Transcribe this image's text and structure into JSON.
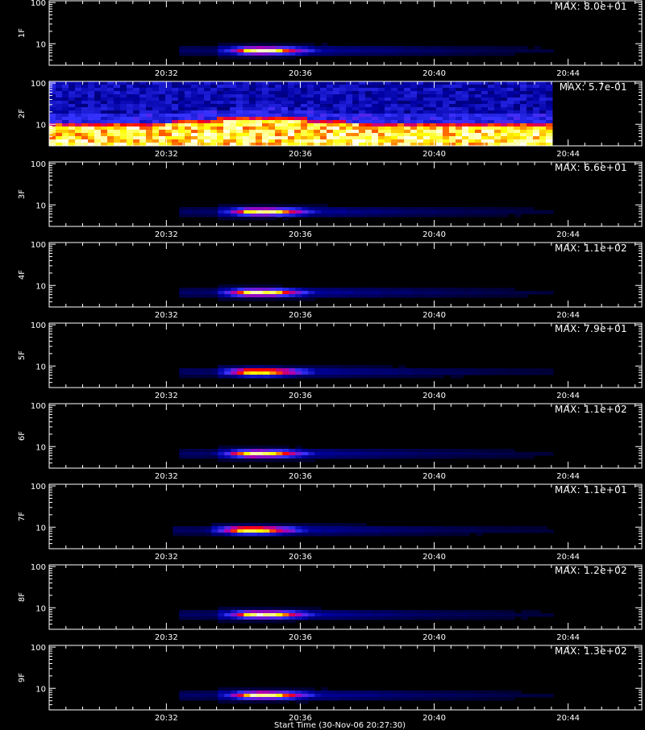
{
  "chart_data": [
    {
      "type": "heatmap",
      "ylabel": "1F",
      "max_label": "MAX: 8.0e+01",
      "x_ticks": [
        "20:32",
        "20:36",
        "20:40",
        "20:44"
      ],
      "x_tick_minutes": [
        32,
        36,
        40,
        44
      ],
      "xlim_minutes": [
        28.5,
        46.2
      ],
      "data_x_minutes": [
        32.0,
        43.4
      ],
      "y_ticks": [
        "10",
        "100"
      ],
      "y_tick_values": [
        10,
        100
      ],
      "ylim": [
        3,
        110
      ],
      "y_scale": "log",
      "grid": false,
      "peak": {
        "time_minutes": 34.8,
        "y_value": 6.8
      },
      "colormap": [
        "#000000",
        "#0000a0",
        "#3333ff",
        "#b000b0",
        "#ff0000",
        "#ffff00",
        "#ffffff"
      ]
    },
    {
      "type": "heatmap",
      "ylabel": "2F",
      "max_label": "MAX: 5.7e-01",
      "x_ticks": [
        "20:32",
        "20:36",
        "20:40",
        "20:44"
      ],
      "x_tick_minutes": [
        32,
        36,
        40,
        44
      ],
      "xlim_minutes": [
        28.5,
        46.2
      ],
      "data_x_minutes": [
        28.5,
        43.4
      ],
      "y_ticks": [
        "10",
        "100"
      ],
      "y_tick_values": [
        10,
        100
      ],
      "ylim": [
        3,
        110
      ],
      "y_scale": "log",
      "grid": false,
      "noise_band": {
        "y_low": 3,
        "y_high": 11,
        "bump_time_minutes": 34.8,
        "bump_y_high": 16
      },
      "colormap": [
        "#000000",
        "#0000a0",
        "#3333ff",
        "#b000b0",
        "#ff0000",
        "#ffff00",
        "#ffffff"
      ]
    },
    {
      "type": "heatmap",
      "ylabel": "3F",
      "max_label": "MAX: 6.6e+01",
      "x_ticks": [
        "20:32",
        "20:36",
        "20:40",
        "20:44"
      ],
      "x_tick_minutes": [
        32,
        36,
        40,
        44
      ],
      "xlim_minutes": [
        28.5,
        46.2
      ],
      "data_x_minutes": [
        32.0,
        43.4
      ],
      "y_ticks": [
        "10",
        "100"
      ],
      "y_tick_values": [
        10,
        100
      ],
      "ylim": [
        3,
        110
      ],
      "y_scale": "log",
      "grid": false,
      "peak": {
        "time_minutes": 34.8,
        "y_value": 6.8
      },
      "colormap": [
        "#000000",
        "#0000a0",
        "#3333ff",
        "#b000b0",
        "#ff0000",
        "#ffff00",
        "#ffffff"
      ]
    },
    {
      "type": "heatmap",
      "ylabel": "4F",
      "max_label": "MAX: 1.1e+02",
      "x_ticks": [
        "20:32",
        "20:36",
        "20:40",
        "20:44"
      ],
      "x_tick_minutes": [
        32,
        36,
        40,
        44
      ],
      "xlim_minutes": [
        28.5,
        46.2
      ],
      "data_x_minutes": [
        32.0,
        43.4
      ],
      "y_ticks": [
        "10",
        "100"
      ],
      "y_tick_values": [
        10,
        100
      ],
      "ylim": [
        3,
        110
      ],
      "y_scale": "log",
      "grid": false,
      "peak": {
        "time_minutes": 34.7,
        "y_value": 6.7
      },
      "colormap": [
        "#000000",
        "#0000a0",
        "#3333ff",
        "#b000b0",
        "#ff0000",
        "#ffff00",
        "#ffffff"
      ]
    },
    {
      "type": "heatmap",
      "ylabel": "5F",
      "max_label": "MAX: 7.9e+01",
      "x_ticks": [
        "20:32",
        "20:36",
        "20:40",
        "20:44"
      ],
      "x_tick_minutes": [
        32,
        36,
        40,
        44
      ],
      "xlim_minutes": [
        28.5,
        46.2
      ],
      "data_x_minutes": [
        32.0,
        43.4
      ],
      "y_ticks": [
        "10",
        "100"
      ],
      "y_tick_values": [
        10,
        100
      ],
      "ylim": [
        3,
        110
      ],
      "y_scale": "log",
      "grid": false,
      "peak": {
        "time_minutes": 34.7,
        "y_value": 7.2
      },
      "colormap": [
        "#000000",
        "#0000a0",
        "#3333ff",
        "#b000b0",
        "#ff0000",
        "#ffff00",
        "#ffffff"
      ]
    },
    {
      "type": "heatmap",
      "ylabel": "6F",
      "max_label": "MAX: 1.1e+02",
      "x_ticks": [
        "20:32",
        "20:36",
        "20:40",
        "20:44"
      ],
      "x_tick_minutes": [
        32,
        36,
        40,
        44
      ],
      "xlim_minutes": [
        28.5,
        46.2
      ],
      "data_x_minutes": [
        32.0,
        43.4
      ],
      "y_ticks": [
        "10",
        "100"
      ],
      "y_tick_values": [
        10,
        100
      ],
      "ylim": [
        3,
        110
      ],
      "y_scale": "log",
      "grid": false,
      "peak": {
        "time_minutes": 34.7,
        "y_value": 6.7
      },
      "colormap": [
        "#000000",
        "#0000a0",
        "#3333ff",
        "#b000b0",
        "#ff0000",
        "#ffff00",
        "#ffffff"
      ]
    },
    {
      "type": "heatmap",
      "ylabel": "7F",
      "max_label": "MAX: 1.1e+01",
      "x_ticks": [
        "20:32",
        "20:36",
        "20:40",
        "20:44"
      ],
      "x_tick_minutes": [
        32,
        36,
        40,
        44
      ],
      "xlim_minutes": [
        28.5,
        46.2
      ],
      "data_x_minutes": [
        32.0,
        43.4
      ],
      "y_ticks": [
        "10",
        "100"
      ],
      "y_tick_values": [
        10,
        100
      ],
      "ylim": [
        3,
        110
      ],
      "y_scale": "log",
      "grid": false,
      "peak": {
        "time_minutes": 34.5,
        "y_value": 8.5
      },
      "colormap": [
        "#000000",
        "#0000a0",
        "#3333ff",
        "#b000b0",
        "#ff0000",
        "#ffff00",
        "#ffffff"
      ]
    },
    {
      "type": "heatmap",
      "ylabel": "8F",
      "max_label": "MAX: 1.2e+02",
      "x_ticks": [
        "20:32",
        "20:36",
        "20:40",
        "20:44"
      ],
      "x_tick_minutes": [
        32,
        36,
        40,
        44
      ],
      "xlim_minutes": [
        28.5,
        46.2
      ],
      "data_x_minutes": [
        32.0,
        43.4
      ],
      "y_ticks": [
        "10",
        "100"
      ],
      "y_tick_values": [
        10,
        100
      ],
      "ylim": [
        3,
        110
      ],
      "y_scale": "log",
      "grid": false,
      "peak": {
        "time_minutes": 34.8,
        "y_value": 6.8
      },
      "colormap": [
        "#000000",
        "#0000a0",
        "#3333ff",
        "#b000b0",
        "#ff0000",
        "#ffff00",
        "#ffffff"
      ]
    },
    {
      "type": "heatmap",
      "ylabel": "9F",
      "max_label": "MAX: 1.3e+02",
      "x_ticks": [
        "20:32",
        "20:36",
        "20:40",
        "20:44"
      ],
      "x_tick_minutes": [
        32,
        36,
        40,
        44
      ],
      "xlim_minutes": [
        28.5,
        46.2
      ],
      "data_x_minutes": [
        32.0,
        43.4
      ],
      "y_ticks": [
        "10",
        "100"
      ],
      "y_tick_values": [
        10,
        100
      ],
      "ylim": [
        3,
        110
      ],
      "y_scale": "log",
      "grid": false,
      "peak": {
        "time_minutes": 34.8,
        "y_value": 6.8
      },
      "colormap": [
        "#000000",
        "#0000a0",
        "#3333ff",
        "#b000b0",
        "#ff0000",
        "#ffff00",
        "#ffffff"
      ]
    }
  ],
  "x_axis_title": "Start Time (30-Nov-06 20:27:30)"
}
